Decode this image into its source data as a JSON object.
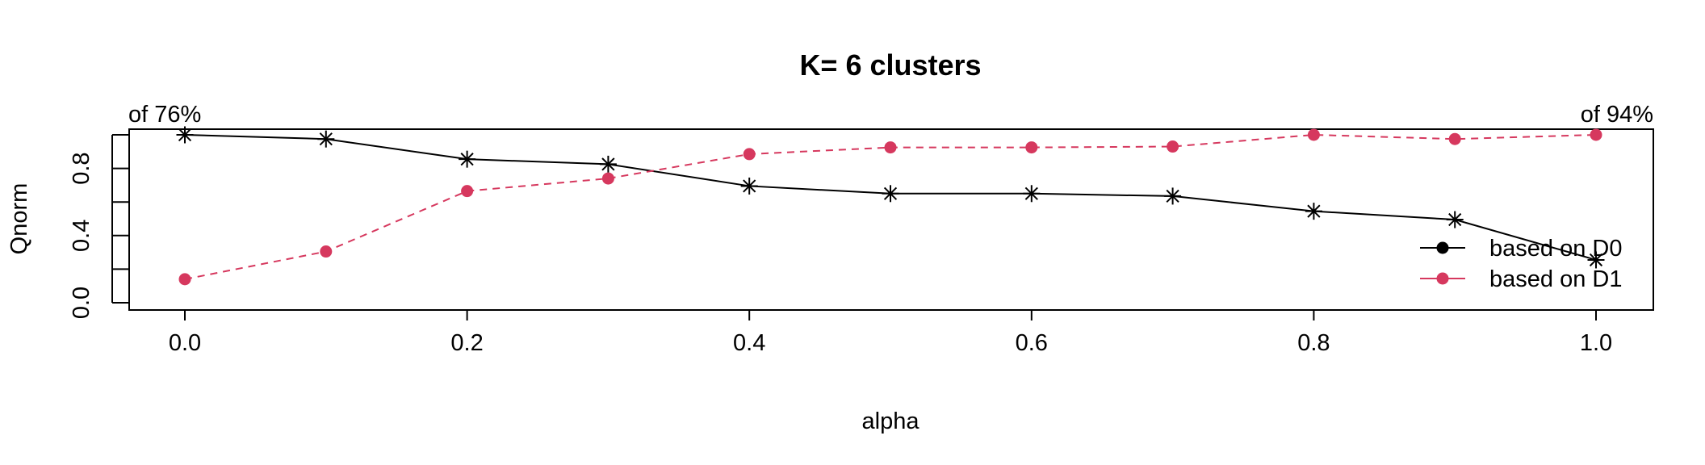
{
  "chart_data": {
    "type": "line",
    "title": "K= 6 clusters",
    "xlabel": "alpha",
    "ylabel": "Qnorm",
    "xlim": [
      0.0,
      1.0
    ],
    "ylim": [
      0.0,
      1.0
    ],
    "x_ticks": [
      "0.0",
      "0.2",
      "0.4",
      "0.6",
      "0.8",
      "1.0"
    ],
    "y_ticks": [
      "0.0",
      "0.4",
      "0.8"
    ],
    "y_minor_ticks": [
      0.0,
      0.2,
      0.4,
      0.6,
      0.8,
      1.0
    ],
    "grid": false,
    "legend_position": "bottom-right",
    "corner_labels": {
      "left": "of 76%",
      "right": "of 94%"
    },
    "x": [
      0.0,
      0.1,
      0.2,
      0.3,
      0.4,
      0.5,
      0.6,
      0.7,
      0.8,
      0.9,
      1.0
    ],
    "series": [
      {
        "name": "based on D0",
        "color": "#000000",
        "line_style": "solid",
        "marker": "asterisk",
        "legend_marker": "dot",
        "values": [
          1.0,
          0.975,
          0.855,
          0.825,
          0.695,
          0.65,
          0.65,
          0.635,
          0.545,
          0.495,
          0.255
        ]
      },
      {
        "name": "based on D1",
        "color": "#D6385E",
        "line_style": "dashed",
        "marker": "dot",
        "legend_marker": "dot",
        "values": [
          0.14,
          0.305,
          0.665,
          0.74,
          0.885,
          0.925,
          0.925,
          0.93,
          1.0,
          0.975,
          1.0
        ]
      }
    ]
  }
}
